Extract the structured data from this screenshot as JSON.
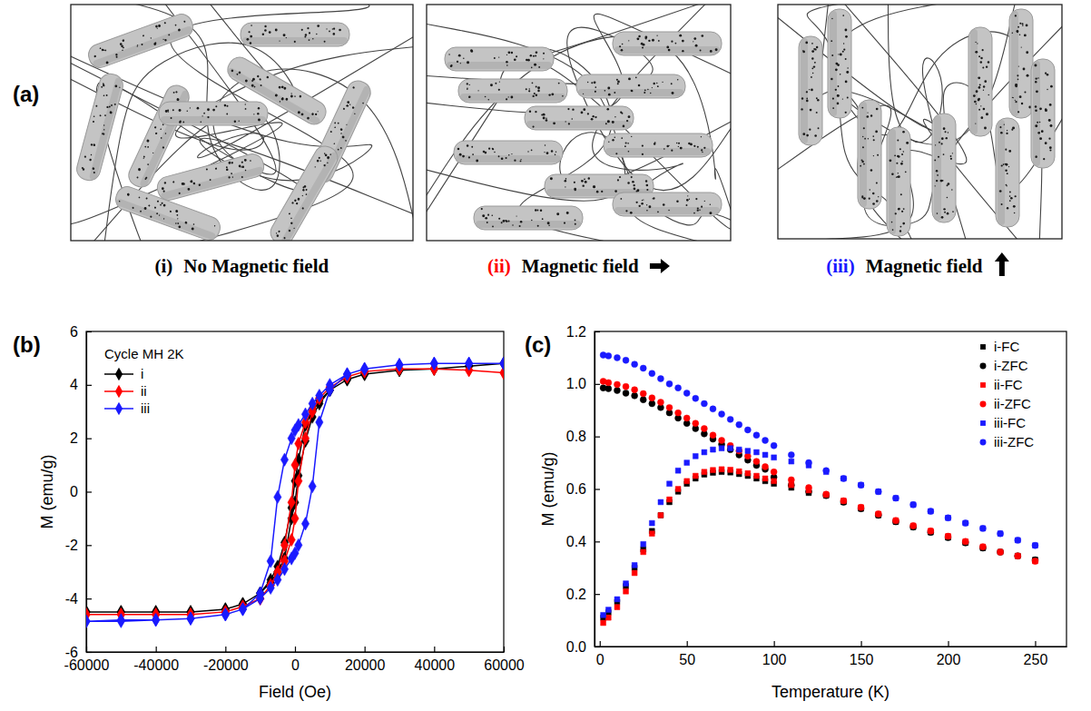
{
  "panel_labels": [
    "(a)",
    "(b)",
    "(c)"
  ],
  "diagram": {
    "items": [
      {
        "numeral": "(i)",
        "label": "No Magnetic field",
        "color": "#000000"
      },
      {
        "numeral": "(ii)",
        "label": "Magnetic field",
        "color": "#ff0000"
      },
      {
        "numeral": "(iii)",
        "label": "Magnetic field",
        "color": "#1a1aff"
      }
    ]
  },
  "chart_data": [
    {
      "type": "line",
      "legend_title": "Cycle MH 2K",
      "x_label": "Field (Oe)",
      "y_label": "M (emu/g)",
      "xlim": [
        -60000,
        60000
      ],
      "xticks": [
        -60000,
        -40000,
        -20000,
        0,
        20000,
        40000,
        60000
      ],
      "ylim": [
        -6,
        6
      ],
      "yticks": [
        -6,
        -4,
        -2,
        0,
        2,
        4,
        6
      ],
      "grid": false,
      "legend": "upper left",
      "series": [
        {
          "name": "i",
          "color": "#000000",
          "marker": "diamond",
          "x": [
            60000,
            50000,
            40000,
            30000,
            20000,
            15000,
            10000,
            7000,
            5000,
            3000,
            1000,
            0,
            -1000,
            -3000,
            -5000,
            -7000,
            -10000,
            -15000,
            -20000,
            -30000,
            -40000,
            -50000,
            -60000,
            -60000,
            -50000,
            -40000,
            -30000,
            -20000,
            -15000,
            -10000,
            -7000,
            -5000,
            -3000,
            -1000,
            0,
            1000,
            3000,
            5000,
            7000,
            10000,
            15000,
            20000,
            30000,
            40000,
            50000,
            60000
          ],
          "values": [
            4.8,
            4.7,
            4.6,
            4.55,
            4.4,
            4.2,
            3.8,
            3.4,
            3.0,
            2.5,
            1.2,
            0.4,
            -0.6,
            -1.9,
            -2.8,
            -3.3,
            -3.8,
            -4.2,
            -4.4,
            -4.5,
            -4.5,
            -4.5,
            -4.5,
            -4.5,
            -4.5,
            -4.5,
            -4.5,
            -4.4,
            -4.2,
            -3.8,
            -3.4,
            -3.0,
            -2.5,
            -1.0,
            -0.4,
            0.6,
            1.9,
            2.8,
            3.3,
            3.8,
            4.2,
            4.4,
            4.55,
            4.6,
            4.7,
            4.8
          ]
        },
        {
          "name": "ii",
          "color": "#ff0000",
          "marker": "diamond",
          "x": [
            60000,
            50000,
            40000,
            30000,
            20000,
            15000,
            10000,
            7000,
            5000,
            3000,
            1000,
            0,
            -1000,
            -3000,
            -5000,
            -7000,
            -10000,
            -15000,
            -20000,
            -30000,
            -40000,
            -50000,
            -60000,
            -60000,
            -50000,
            -40000,
            -30000,
            -20000,
            -15000,
            -10000,
            -7000,
            -5000,
            -3000,
            -1000,
            0,
            1000,
            3000,
            5000,
            7000,
            10000,
            15000,
            20000,
            30000,
            40000,
            50000,
            60000
          ],
          "values": [
            4.45,
            4.55,
            4.6,
            4.6,
            4.5,
            4.3,
            3.9,
            3.5,
            3.1,
            2.6,
            1.8,
            1.0,
            -0.4,
            -2.0,
            -3.0,
            -3.5,
            -4.0,
            -4.3,
            -4.5,
            -4.6,
            -4.6,
            -4.6,
            -4.6,
            -4.6,
            -4.6,
            -4.6,
            -4.6,
            -4.5,
            -4.3,
            -4.0,
            -3.5,
            -3.1,
            -2.6,
            -1.8,
            -1.0,
            0.4,
            2.0,
            3.0,
            3.5,
            3.9,
            4.3,
            4.5,
            4.6,
            4.6,
            4.55,
            4.45
          ]
        },
        {
          "name": "iii",
          "color": "#1a1aff",
          "marker": "diamond",
          "x": [
            60000,
            50000,
            40000,
            30000,
            20000,
            15000,
            10000,
            7000,
            5000,
            3000,
            1000,
            0,
            -1000,
            -3000,
            -5000,
            -7000,
            -10000,
            -15000,
            -20000,
            -30000,
            -40000,
            -50000,
            -60000,
            -60000,
            -50000,
            -40000,
            -30000,
            -20000,
            -15000,
            -10000,
            -7000,
            -5000,
            -3000,
            -1000,
            0,
            1000,
            3000,
            5000,
            7000,
            10000,
            15000,
            20000,
            30000,
            40000,
            50000,
            60000
          ],
          "values": [
            4.8,
            4.8,
            4.8,
            4.75,
            4.6,
            4.4,
            4.0,
            3.6,
            3.3,
            2.9,
            2.5,
            2.3,
            2.0,
            1.2,
            -0.2,
            -2.6,
            -3.8,
            -4.4,
            -4.6,
            -4.75,
            -4.8,
            -4.8,
            -4.85,
            -4.85,
            -4.85,
            -4.8,
            -4.75,
            -4.6,
            -4.4,
            -4.0,
            -3.6,
            -3.3,
            -2.9,
            -2.5,
            -2.3,
            -2.0,
            -1.2,
            0.2,
            2.6,
            3.8,
            4.4,
            4.6,
            4.75,
            4.8,
            4.8,
            4.8
          ]
        }
      ]
    },
    {
      "type": "scatter",
      "x_label": "Temperature (K)",
      "y_label": "M (emu/g)",
      "xlim": [
        -3,
        268
      ],
      "xticks": [
        0,
        50,
        100,
        150,
        200,
        250
      ],
      "ylim": [
        0,
        1.2
      ],
      "yticks": [
        {
          "value": 0,
          "label": "0.0"
        },
        0.2,
        0.4,
        0.6,
        0.8,
        {
          "value": 1,
          "label": "1.0"
        },
        1.2
      ],
      "grid": false,
      "legend": "upper right",
      "x": [
        2,
        5,
        10,
        15,
        20,
        25,
        30,
        35,
        40,
        45,
        50,
        55,
        60,
        65,
        70,
        75,
        80,
        85,
        90,
        95,
        100,
        110,
        120,
        130,
        140,
        150,
        160,
        170,
        180,
        190,
        200,
        210,
        220,
        230,
        240,
        250
      ],
      "series": [
        {
          "name": "i-FC",
          "color": "#000000",
          "marker": "square",
          "values": [
            0.11,
            0.13,
            0.17,
            0.23,
            0.3,
            0.37,
            0.44,
            0.5,
            0.55,
            0.59,
            0.62,
            0.64,
            0.655,
            0.662,
            0.665,
            0.663,
            0.657,
            0.65,
            0.64,
            0.63,
            0.62,
            0.605,
            0.585,
            0.575,
            0.55,
            0.525,
            0.5,
            0.475,
            0.455,
            0.435,
            0.415,
            0.395,
            0.375,
            0.36,
            0.345,
            0.33
          ]
        },
        {
          "name": "i-ZFC",
          "color": "#000000",
          "marker": "circle",
          "values": [
            0.985,
            0.982,
            0.975,
            0.965,
            0.955,
            0.94,
            0.925,
            0.91,
            0.89,
            0.87,
            0.85,
            0.83,
            0.81,
            0.79,
            0.77,
            0.75,
            0.73,
            0.71,
            0.69,
            0.675,
            0.645,
            0.615,
            0.59,
            0.575,
            0.55,
            0.525,
            0.5,
            0.475,
            0.455,
            0.435,
            0.415,
            0.395,
            0.375,
            0.36,
            0.345,
            0.33
          ]
        },
        {
          "name": "ii-FC",
          "color": "#ff0000",
          "marker": "square",
          "values": [
            0.09,
            0.11,
            0.15,
            0.21,
            0.28,
            0.36,
            0.43,
            0.5,
            0.56,
            0.6,
            0.63,
            0.65,
            0.665,
            0.672,
            0.675,
            0.673,
            0.667,
            0.66,
            0.65,
            0.64,
            0.63,
            0.615,
            0.595,
            0.578,
            0.555,
            0.53,
            0.505,
            0.48,
            0.46,
            0.44,
            0.42,
            0.4,
            0.38,
            0.36,
            0.345,
            0.325
          ]
        },
        {
          "name": "ii-ZFC",
          "color": "#ff0000",
          "marker": "circle",
          "values": [
            1.01,
            1.005,
            0.998,
            0.99,
            0.978,
            0.963,
            0.947,
            0.93,
            0.91,
            0.89,
            0.87,
            0.85,
            0.83,
            0.805,
            0.785,
            0.765,
            0.745,
            0.725,
            0.705,
            0.685,
            0.665,
            0.635,
            0.605,
            0.58,
            0.555,
            0.53,
            0.505,
            0.48,
            0.46,
            0.44,
            0.42,
            0.4,
            0.38,
            0.36,
            0.345,
            0.325
          ]
        },
        {
          "name": "iii-FC",
          "color": "#1a1aff",
          "marker": "square",
          "values": [
            0.12,
            0.14,
            0.18,
            0.24,
            0.31,
            0.39,
            0.47,
            0.55,
            0.62,
            0.67,
            0.7,
            0.725,
            0.74,
            0.75,
            0.755,
            0.755,
            0.75,
            0.745,
            0.74,
            0.73,
            0.72,
            0.705,
            0.69,
            0.665,
            0.64,
            0.615,
            0.59,
            0.565,
            0.54,
            0.515,
            0.49,
            0.47,
            0.45,
            0.43,
            0.405,
            0.385
          ]
        },
        {
          "name": "iii-ZFC",
          "color": "#1a1aff",
          "marker": "circle",
          "values": [
            1.11,
            1.107,
            1.1,
            1.09,
            1.075,
            1.06,
            1.04,
            1.02,
            1.0,
            0.985,
            0.965,
            0.945,
            0.925,
            0.905,
            0.885,
            0.865,
            0.845,
            0.825,
            0.805,
            0.785,
            0.765,
            0.73,
            0.7,
            0.67,
            0.64,
            0.615,
            0.59,
            0.565,
            0.54,
            0.515,
            0.49,
            0.47,
            0.45,
            0.43,
            0.405,
            0.385
          ]
        }
      ]
    }
  ]
}
